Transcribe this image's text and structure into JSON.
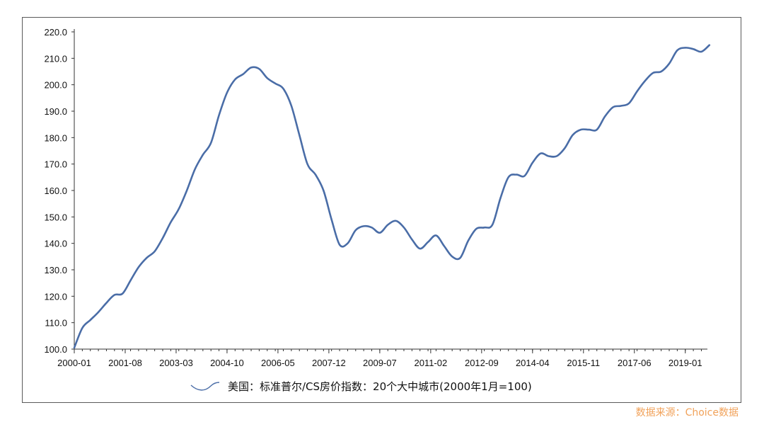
{
  "chart_data": {
    "type": "line",
    "legend_position": "bottom",
    "grid": false,
    "ylim": [
      100,
      220
    ],
    "y_ticks": [
      "100.0",
      "110.0",
      "120.0",
      "130.0",
      "140.0",
      "150.0",
      "160.0",
      "170.0",
      "180.0",
      "190.0",
      "200.0",
      "210.0",
      "220.0"
    ],
    "x_ticks": [
      "2000-01",
      "2001-08",
      "2003-03",
      "2004-10",
      "2006-05",
      "2007-12",
      "2009-07",
      "2011-02",
      "2012-09",
      "2014-04",
      "2015-11",
      "2017-06",
      "2019-01"
    ],
    "series": [
      {
        "name": "美国：标准普尔/CS房价指数：20个大中城市(2000年1月=100)",
        "color": "#4a6da7",
        "x": [
          "2000-01",
          "2000-04",
          "2000-07",
          "2000-10",
          "2001-01",
          "2001-04",
          "2001-07",
          "2001-10",
          "2002-01",
          "2002-04",
          "2002-07",
          "2002-10",
          "2003-01",
          "2003-04",
          "2003-07",
          "2003-10",
          "2004-01",
          "2004-04",
          "2004-07",
          "2004-10",
          "2005-01",
          "2005-04",
          "2005-07",
          "2005-10",
          "2006-01",
          "2006-04",
          "2006-07",
          "2006-10",
          "2007-01",
          "2007-04",
          "2007-07",
          "2007-10",
          "2008-01",
          "2008-04",
          "2008-07",
          "2008-10",
          "2009-01",
          "2009-04",
          "2009-07",
          "2009-10",
          "2010-01",
          "2010-04",
          "2010-07",
          "2010-10",
          "2011-01",
          "2011-04",
          "2011-07",
          "2011-10",
          "2012-01",
          "2012-04",
          "2012-07",
          "2012-10",
          "2013-01",
          "2013-04",
          "2013-07",
          "2013-10",
          "2014-01",
          "2014-04",
          "2014-07",
          "2014-10",
          "2015-01",
          "2015-04",
          "2015-07",
          "2015-10",
          "2016-01",
          "2016-04",
          "2016-07",
          "2016-10",
          "2017-01",
          "2017-04",
          "2017-07",
          "2017-10",
          "2018-01",
          "2018-04",
          "2018-07",
          "2018-10",
          "2019-01",
          "2019-04",
          "2019-07",
          "2019-10"
        ],
        "values": [
          100.5,
          108.0,
          111.0,
          114.0,
          117.5,
          120.5,
          121.0,
          126.0,
          131.0,
          134.5,
          137.0,
          142.0,
          148.0,
          153.0,
          160.0,
          168.0,
          173.5,
          178.0,
          188.5,
          197.0,
          202.0,
          204.0,
          206.5,
          206.0,
          202.5,
          200.5,
          198.5,
          192.0,
          181.0,
          170.0,
          166.0,
          160.0,
          149.0,
          139.5,
          140.0,
          145.0,
          146.5,
          146.0,
          144.0,
          147.0,
          148.5,
          146.0,
          141.5,
          138.0,
          140.5,
          143.0,
          139.0,
          135.0,
          134.5,
          141.0,
          145.5,
          146.0,
          147.0,
          157.0,
          165.0,
          166.0,
          165.5,
          170.5,
          174.0,
          173.0,
          173.0,
          176.0,
          181.0,
          183.0,
          183.0,
          183.0,
          188.0,
          191.5,
          192.0,
          193.0,
          197.5,
          201.5,
          204.5,
          205.0,
          208.0,
          213.0,
          214.0,
          213.5,
          212.5,
          215.0
        ]
      }
    ]
  },
  "source_note": "数据来源：Choice数据"
}
